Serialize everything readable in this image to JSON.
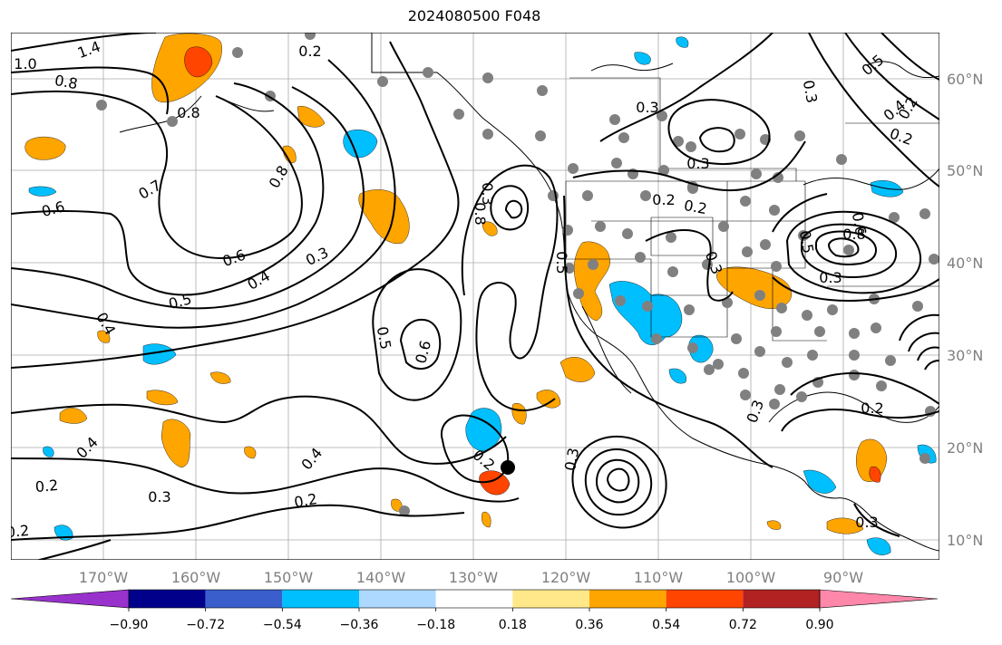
{
  "title": "2024080500 F048",
  "lon_ticks": [
    "170°W",
    "160°W",
    "150°W",
    "140°W",
    "130°W",
    "120°W",
    "110°W",
    "100°W",
    "90°W"
  ],
  "lat_ticks": [
    "60°N",
    "50°N",
    "40°N",
    "30°N",
    "20°N",
    "10°N"
  ],
  "contour_labels": [
    "1.4",
    "1.0",
    "0.8",
    "0.2",
    "0.8",
    "0.7",
    "0.6",
    "0.8",
    "0.6",
    "0.5",
    "0.4",
    "0.3",
    "0.4",
    "0.5",
    "0.6",
    "0.5",
    "0.3",
    "0.3",
    "0.2",
    "0.3",
    "0.2",
    "0.2",
    "0.2",
    "0.2",
    "0.4",
    "0.2",
    "0.3",
    "0.4",
    "0.3",
    "0.8",
    "0.3",
    "0.3",
    "0.5",
    "0.6",
    "0.4",
    "0.2",
    "0.3",
    "0.3",
    "0.8",
    "0.5",
    "0.2",
    "0.2",
    "0.3"
  ],
  "colorbar": {
    "ticks": [
      "−0.90",
      "−0.72",
      "−0.54",
      "−0.36",
      "−0.18",
      "0.18",
      "0.36",
      "0.54",
      "0.72",
      "0.90"
    ],
    "colors": [
      "#9932cc",
      "#00008b",
      "#3a5fcd",
      "#00bfff",
      "#add8ff",
      "#ffffff",
      "#ffe88a",
      "#ffa500",
      "#ff4500",
      "#b22222",
      "#ff88aa"
    ]
  },
  "colors": {
    "positive": "#ffa500",
    "strong_positive": "#ff4500",
    "negative": "#00bfff",
    "light_negative": "#add8ff"
  }
}
